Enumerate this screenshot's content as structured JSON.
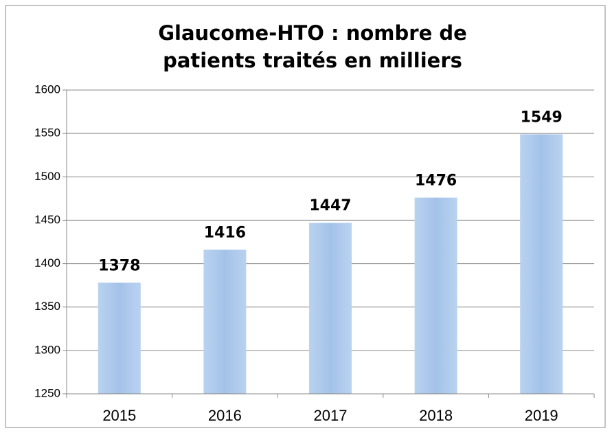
{
  "chart_data": {
    "type": "bar",
    "title": "Glaucome-HTO : nombre de patients traités en milliers",
    "categories": [
      "2015",
      "2016",
      "2017",
      "2018",
      "2019"
    ],
    "values": [
      1378,
      1416,
      1447,
      1476,
      1549
    ],
    "color": "#a4c2e8",
    "ylim": [
      1250,
      1600
    ],
    "yticks": [
      1250,
      1300,
      1350,
      1400,
      1450,
      1500,
      1550,
      1600
    ],
    "grid": true
  }
}
